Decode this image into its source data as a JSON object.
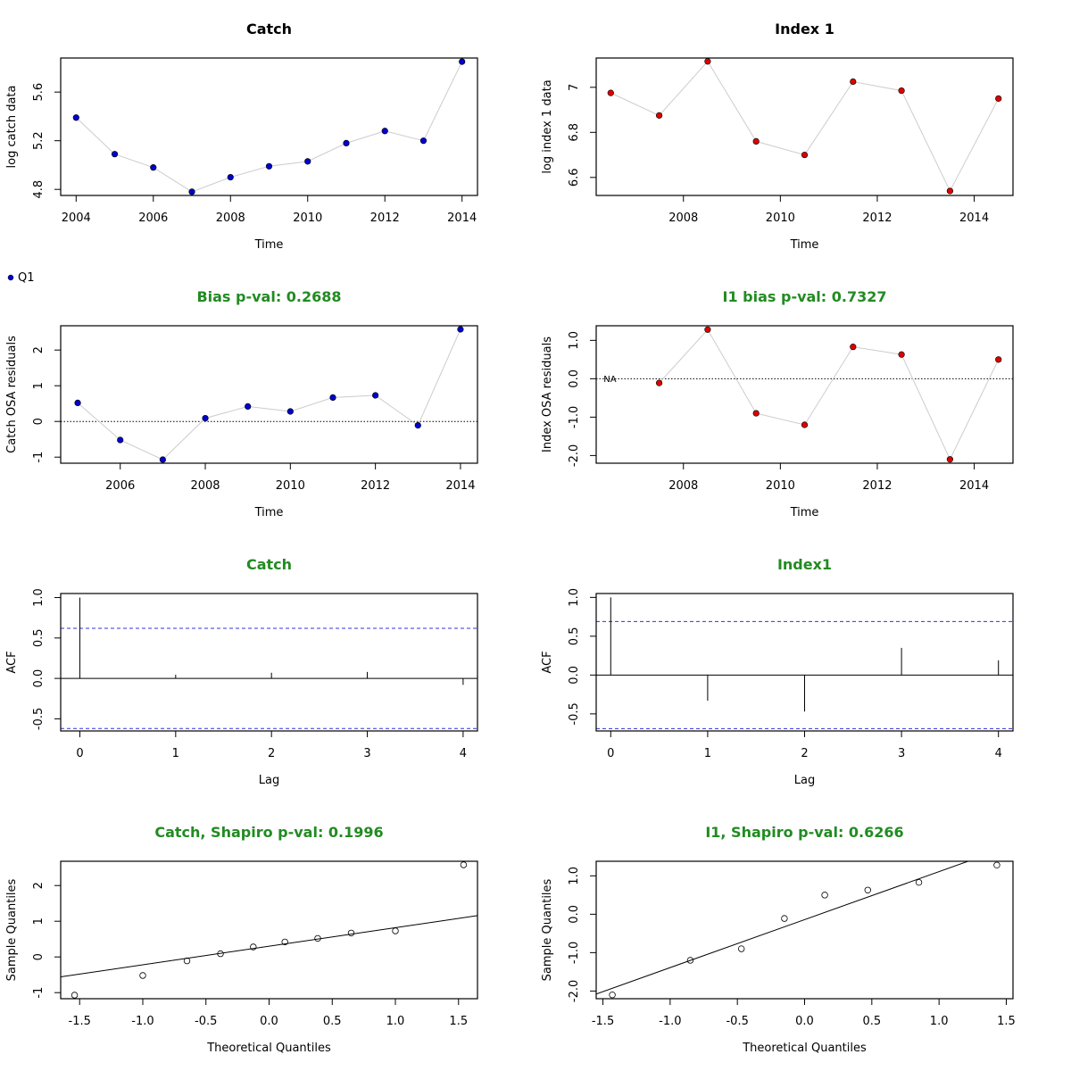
{
  "chart_data": [
    {
      "id": "catch-series",
      "type": "line",
      "title": "Catch",
      "title_color": "#000000",
      "xlabel": "Time",
      "ylabel": "log catch data",
      "x": [
        2004,
        2005,
        2006,
        2007,
        2008,
        2009,
        2010,
        2011,
        2012,
        2013,
        2014
      ],
      "series": [
        {
          "values": [
            5.39,
            5.09,
            4.98,
            4.78,
            4.9,
            4.99,
            5.03,
            5.18,
            5.28,
            5.2,
            5.85
          ],
          "color": "#0000cd"
        }
      ],
      "xlim": [
        2003.6,
        2014.4
      ],
      "ylim": [
        4.75,
        5.88
      ],
      "xticks": [
        2004,
        2006,
        2008,
        2010,
        2012,
        2014
      ],
      "yticks": [
        4.8,
        5.2,
        5.6
      ],
      "legend": "Q1",
      "legend_placement": "below-left"
    },
    {
      "id": "index-series",
      "type": "line",
      "title": "Index 1",
      "title_color": "#000000",
      "xlabel": "Time",
      "ylabel": "log index 1 data",
      "x": [
        2006.5,
        2007.5,
        2008.5,
        2009.5,
        2010.5,
        2011.5,
        2012.5,
        2013.5,
        2014.5
      ],
      "series": [
        {
          "values": [
            6.975,
            6.875,
            7.115,
            6.76,
            6.7,
            7.025,
            6.985,
            6.54,
            6.95
          ],
          "color": "#dd0000"
        }
      ],
      "xlim": [
        2006.2,
        2014.8
      ],
      "ylim": [
        6.52,
        7.13
      ],
      "xticks": [
        2008,
        2010,
        2012,
        2014
      ],
      "yticks": [
        6.6,
        6.8,
        7.0
      ]
    },
    {
      "id": "catch-residuals",
      "type": "line",
      "title": "Bias p-val: 0.2688",
      "title_color": "#228b22",
      "xlabel": "Time",
      "ylabel": "Catch OSA residuals",
      "x": [
        2005,
        2006,
        2007,
        2008,
        2009,
        2010,
        2011,
        2012,
        2013,
        2014
      ],
      "series": [
        {
          "values": [
            0.52,
            -0.52,
            -1.07,
            0.09,
            0.42,
            0.28,
            0.67,
            0.73,
            -0.11,
            2.58
          ],
          "color": "#0000cd"
        }
      ],
      "xlim": [
        2004.6,
        2014.4
      ],
      "ylim": [
        -1.17,
        2.68
      ],
      "xticks": [
        2006,
        2008,
        2010,
        2012,
        2014
      ],
      "yticks": [
        -1,
        0,
        1,
        2
      ],
      "hline": 0
    },
    {
      "id": "index-residuals",
      "type": "line",
      "title": "I1 bias p-val: 0.7327",
      "title_color": "#228b22",
      "xlabel": "Time",
      "ylabel": "Index OSA residuals",
      "x": [
        2007.5,
        2008.5,
        2009.5,
        2010.5,
        2011.5,
        2012.5,
        2013.5,
        2014.5
      ],
      "series": [
        {
          "values": [
            -0.11,
            1.28,
            -0.9,
            -1.2,
            0.83,
            0.63,
            -2.1,
            0.5
          ],
          "color": "#dd0000"
        }
      ],
      "xlim": [
        2006.2,
        2014.8
      ],
      "ylim": [
        -2.2,
        1.38
      ],
      "xticks": [
        2008,
        2010,
        2012,
        2014
      ],
      "yticks": [
        -2.0,
        -1.0,
        0.0,
        1.0
      ],
      "ytick_labels": [
        "-2.0",
        "-1.0",
        "0.0",
        "1.0"
      ],
      "hline": 0,
      "annotation": {
        "text": "NA",
        "x": 2006.5,
        "y": 0
      }
    },
    {
      "id": "catch-acf",
      "type": "bar",
      "title": "Catch",
      "title_color": "#228b22",
      "xlabel": "Lag",
      "ylabel": "ACF",
      "categories": [
        0,
        1,
        2,
        3,
        4
      ],
      "values": [
        1.0,
        0.045,
        0.07,
        0.08,
        -0.08
      ],
      "confidence_band": 0.62,
      "xlim": [
        -0.2,
        4.15
      ],
      "ylim": [
        -0.65,
        1.05
      ],
      "xticks": [
        0,
        1,
        2,
        3,
        4
      ],
      "yticks": [
        -0.5,
        0.0,
        0.5,
        1.0
      ],
      "ytick_labels": [
        "-0.5",
        "0.0",
        "0.5",
        "1.0"
      ]
    },
    {
      "id": "index-acf",
      "type": "bar",
      "title": "Index1",
      "title_color": "#228b22",
      "xlabel": "Lag",
      "ylabel": "ACF",
      "categories": [
        0,
        1,
        2,
        3,
        4
      ],
      "values": [
        1.0,
        -0.33,
        -0.47,
        0.35,
        0.19
      ],
      "confidence_band": 0.69,
      "xlim": [
        -0.15,
        4.15
      ],
      "ylim": [
        -0.72,
        1.05
      ],
      "xticks": [
        0,
        1,
        2,
        3,
        4
      ],
      "yticks": [
        -0.5,
        0.0,
        0.5,
        1.0
      ],
      "ytick_labels": [
        "-0.5",
        "0.0",
        "0.5",
        "1.0"
      ]
    },
    {
      "id": "catch-qq",
      "type": "scatter",
      "title": "Catch, Shapiro p-val: 0.1996",
      "title_color": "#228b22",
      "xlabel": "Theoretical Quantiles",
      "ylabel": "Sample Quantiles",
      "x": [
        -1.54,
        -1.0,
        -0.65,
        -0.385,
        -0.125,
        0.125,
        0.385,
        0.65,
        1.0,
        1.54
      ],
      "y": [
        -1.07,
        -0.52,
        -0.11,
        0.09,
        0.28,
        0.42,
        0.52,
        0.67,
        0.73,
        2.58
      ],
      "qqline": {
        "slope": 0.52,
        "intercept": 0.3
      },
      "xlim": [
        -1.65,
        1.65
      ],
      "ylim": [
        -1.17,
        2.68
      ],
      "xticks": [
        -1.5,
        -1.0,
        -0.5,
        0.0,
        0.5,
        1.0,
        1.5
      ],
      "xtick_labels": [
        "-1.5",
        "-1.0",
        "-0.5",
        "0.0",
        "0.5",
        "1.0",
        "1.5"
      ],
      "yticks": [
        -1,
        0,
        1,
        2
      ]
    },
    {
      "id": "index-qq",
      "type": "scatter",
      "title": "I1, Shapiro p-val: 0.6266",
      "title_color": "#228b22",
      "xlabel": "Theoretical Quantiles",
      "ylabel": "Sample Quantiles",
      "x": [
        -1.43,
        -0.85,
        -0.47,
        -0.15,
        0.15,
        0.47,
        0.85,
        1.43
      ],
      "y": [
        -2.1,
        -1.2,
        -0.9,
        -0.11,
        0.5,
        0.63,
        0.83,
        1.28
      ],
      "qqline": {
        "slope": 1.25,
        "intercept": -0.14
      },
      "xlim": [
        -1.55,
        1.55
      ],
      "ylim": [
        -2.2,
        1.38
      ],
      "xticks": [
        -1.5,
        -1.0,
        -0.5,
        0.0,
        0.5,
        1.0,
        1.5
      ],
      "xtick_labels": [
        "-1.5",
        "-1.0",
        "-0.5",
        "0.0",
        "0.5",
        "1.0",
        "1.5"
      ],
      "yticks": [
        -2.0,
        -1.0,
        0.0,
        1.0
      ],
      "ytick_labels": [
        "-2.0",
        "-1.0",
        "0.0",
        "1.0"
      ]
    }
  ]
}
